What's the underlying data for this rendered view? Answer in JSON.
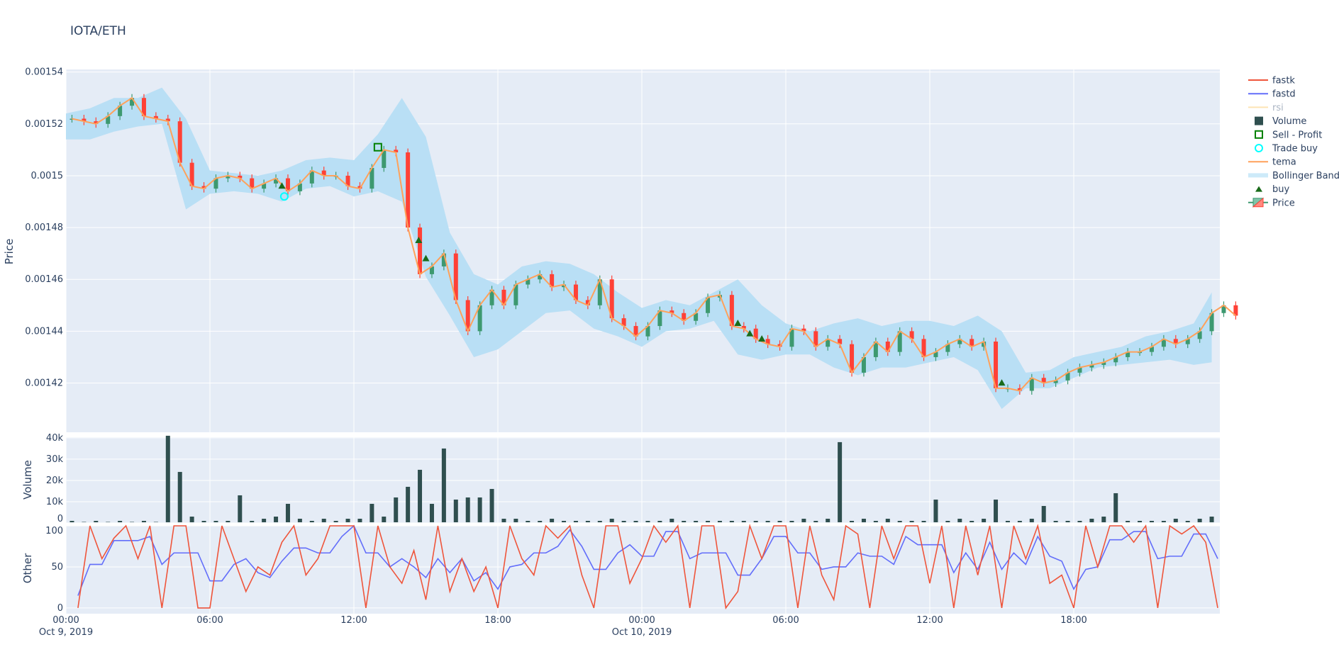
{
  "title": "IOTA/ETH",
  "chart_data": [
    {
      "type": "candlestick",
      "panel": "price",
      "ylabel": "Price",
      "ylim": [
        0.001401,
        0.001541
      ],
      "yticks": [
        "0.00154",
        "0.00152",
        "0.0015",
        "0.00148",
        "0.00146",
        "0.00144",
        "0.00142"
      ],
      "ytick_values": [
        0.00154,
        0.00152,
        0.0015,
        0.00148,
        0.00146,
        0.00144,
        0.00142
      ],
      "grid": true,
      "x_step_hours": 0.5,
      "x_start": "2019-10-09 00:00",
      "close": [
        0.001522,
        0.001521,
        0.00152,
        0.001523,
        0.001527,
        0.00153,
        0.001523,
        0.001522,
        0.001521,
        0.001505,
        0.001496,
        0.001495,
        0.001499,
        0.0015,
        0.001499,
        0.001495,
        0.001497,
        0.001499,
        0.001494,
        0.001497,
        0.001502,
        0.0015,
        0.0015,
        0.001496,
        0.001495,
        0.001503,
        0.00151,
        0.001509,
        0.00148,
        0.001462,
        0.001465,
        0.00147,
        0.001452,
        0.00144,
        0.00145,
        0.001456,
        0.00145,
        0.001458,
        0.00146,
        0.001462,
        0.001457,
        0.001458,
        0.001452,
        0.00145,
        0.00146,
        0.001445,
        0.001442,
        0.001438,
        0.001442,
        0.001448,
        0.001447,
        0.001444,
        0.001447,
        0.001453,
        0.001454,
        0.001442,
        0.001441,
        0.001437,
        0.001435,
        0.001434,
        0.001441,
        0.00144,
        0.001434,
        0.001437,
        0.001435,
        0.001424,
        0.00143,
        0.001436,
        0.001432,
        0.00144,
        0.001437,
        0.00143,
        0.001432,
        0.001435,
        0.001437,
        0.001434,
        0.001436,
        0.001418,
        0.001418,
        0.001417,
        0.001422,
        0.00142,
        0.001421,
        0.001424,
        0.001426,
        0.001427,
        0.001428,
        0.00143,
        0.001432,
        0.001432,
        0.001434,
        0.001437,
        0.001435,
        0.001437,
        0.00144,
        0.001447,
        0.00145,
        0.001446
      ],
      "bollinger_step_hours": 1,
      "bollinger_upper": [
        0.001524,
        0.001526,
        0.00153,
        0.00153,
        0.001534,
        0.001522,
        0.001502,
        0.001501,
        0.0015,
        0.001502,
        0.001506,
        0.001507,
        0.001506,
        0.001516,
        0.00153,
        0.001515,
        0.001478,
        0.001462,
        0.001458,
        0.001465,
        0.001467,
        0.001466,
        0.001462,
        0.001455,
        0.001449,
        0.001452,
        0.00145,
        0.001455,
        0.00146,
        0.00145,
        0.001443,
        0.00144,
        0.001443,
        0.001445,
        0.001442,
        0.001444,
        0.001444,
        0.001442,
        0.001446,
        0.00144,
        0.001424,
        0.001425,
        0.00143,
        0.001432,
        0.001434,
        0.001438,
        0.00144,
        0.001443,
        0.001455
      ],
      "bollinger_lower": [
        0.001514,
        0.001514,
        0.001517,
        0.001519,
        0.00152,
        0.001487,
        0.001493,
        0.001494,
        0.001493,
        0.00149,
        0.001495,
        0.001496,
        0.001492,
        0.001494,
        0.00149,
        0.001461,
        0.001446,
        0.00143,
        0.001433,
        0.00144,
        0.001447,
        0.001448,
        0.001441,
        0.001438,
        0.001434,
        0.00144,
        0.001441,
        0.001444,
        0.001431,
        0.001429,
        0.001431,
        0.001431,
        0.001426,
        0.001423,
        0.001426,
        0.001426,
        0.001428,
        0.00143,
        0.001425,
        0.00141,
        0.001418,
        0.001418,
        0.001422,
        0.001426,
        0.001427,
        0.001428,
        0.001429,
        0.001427,
        0.001428
      ],
      "buy": [
        [
          9.0,
          0.001495
        ],
        [
          14.7,
          0.001474
        ],
        [
          15.0,
          0.001467
        ],
        [
          28.0,
          0.001442
        ],
        [
          28.5,
          0.001438
        ],
        [
          29.0,
          0.001436
        ],
        [
          39.0,
          0.001419
        ]
      ],
      "trade_buy": [
        [
          9.1,
          0.001492
        ]
      ],
      "sell_profit": [
        [
          13.0,
          0.001511
        ]
      ]
    },
    {
      "type": "bar",
      "panel": "volume",
      "ylabel": "Volume",
      "ylim": [
        0,
        40300
      ],
      "yticks": [
        "40k",
        "30k",
        "20k",
        "10k",
        "0"
      ],
      "ytick_values": [
        40000,
        30000,
        20000,
        10000,
        0
      ],
      "x_step_hours": 0.5,
      "values": [
        1000,
        500,
        1000,
        500,
        1000,
        500,
        1000,
        500,
        41000,
        24000,
        3000,
        1000,
        1000,
        1000,
        13000,
        1000,
        2000,
        3000,
        9000,
        2000,
        1000,
        2000,
        1000,
        2000,
        2000,
        9000,
        3000,
        12000,
        17000,
        25000,
        9000,
        35000,
        11000,
        12000,
        12000,
        16000,
        2000,
        2000,
        1000,
        1000,
        2000,
        1000,
        1000,
        1000,
        1000,
        2000,
        1000,
        1000,
        1000,
        1000,
        2000,
        1000,
        1000,
        1000,
        1000,
        1000,
        1000,
        1000,
        1000,
        1000,
        1000,
        2000,
        1000,
        2000,
        38000,
        1000,
        2000,
        1000,
        2000,
        1000,
        1000,
        1000,
        11000,
        1000,
        2000,
        1000,
        2000,
        11000,
        1000,
        1000,
        2000,
        8000,
        1000,
        1000,
        1000,
        2000,
        3000,
        14000,
        1000,
        1000,
        1000,
        1000,
        2000,
        1000,
        2000,
        3000
      ]
    },
    {
      "type": "line",
      "panel": "other",
      "ylabel": "Other",
      "ylim": [
        -7,
        100
      ],
      "yticks": [
        "100",
        "50",
        "0"
      ],
      "ytick_values": [
        100,
        50,
        0
      ],
      "x_step_hours": 0.5,
      "series": [
        {
          "name": "fastk",
          "color": "#ef553b",
          "values": [
            0,
            100,
            60,
            85,
            100,
            60,
            100,
            0,
            100,
            100,
            0,
            0,
            100,
            60,
            20,
            50,
            40,
            80,
            100,
            40,
            60,
            100,
            100,
            100,
            0,
            100,
            50,
            30,
            70,
            10,
            100,
            20,
            60,
            20,
            50,
            0,
            100,
            60,
            40,
            100,
            85,
            100,
            40,
            0,
            100,
            100,
            30,
            60,
            100,
            80,
            100,
            0,
            100,
            100,
            0,
            20,
            100,
            60,
            100,
            100,
            0,
            100,
            40,
            10,
            100,
            90,
            0,
            100,
            60,
            100,
            100,
            30,
            100,
            0,
            100,
            40,
            100,
            0,
            100,
            60,
            100,
            30,
            40,
            0,
            100,
            50,
            100,
            100,
            80,
            100,
            0,
            100,
            90,
            100,
            80,
            0
          ]
        },
        {
          "name": "fastd",
          "color": "#636efa",
          "values": [
            15,
            53,
            53,
            82,
            82,
            82,
            87,
            53,
            67,
            67,
            67,
            33,
            33,
            53,
            60,
            43,
            37,
            57,
            73,
            73,
            67,
            67,
            87,
            100,
            67,
            67,
            50,
            60,
            50,
            37,
            60,
            43,
            60,
            33,
            43,
            23,
            50,
            53,
            67,
            67,
            75,
            95,
            75,
            47,
            47,
            67,
            77,
            63,
            63,
            93,
            93,
            60,
            67,
            67,
            67,
            40,
            40,
            60,
            87,
            87,
            67,
            67,
            47,
            50,
            50,
            67,
            63,
            63,
            53,
            87,
            77,
            77,
            77,
            43,
            67,
            47,
            80,
            47,
            67,
            53,
            87,
            63,
            57,
            23,
            47,
            50,
            83,
            83,
            93,
            93,
            60,
            63,
            63,
            90,
            90,
            60
          ]
        }
      ]
    }
  ],
  "x_axis": {
    "ticks": [
      {
        "hour": 0,
        "label": "00:00",
        "sub": "Oct 9, 2019"
      },
      {
        "hour": 6,
        "label": "06:00",
        "sub": ""
      },
      {
        "hour": 12,
        "label": "12:00",
        "sub": ""
      },
      {
        "hour": 18,
        "label": "18:00",
        "sub": ""
      },
      {
        "hour": 24,
        "label": "00:00",
        "sub": "Oct 10, 2019"
      },
      {
        "hour": 30,
        "label": "06:00",
        "sub": ""
      },
      {
        "hour": 36,
        "label": "12:00",
        "sub": ""
      },
      {
        "hour": 42,
        "label": "18:00",
        "sub": ""
      }
    ]
  },
  "legend": {
    "placement": "right",
    "items": [
      "fastk",
      "fastd",
      "rsi",
      "Volume",
      "Sell - Profit",
      "Trade buy",
      "tema",
      "Bollinger Band",
      "buy",
      "Price"
    ]
  },
  "colors": {
    "increasing": "#3d9970",
    "decreasing": "#ff4136",
    "tema": "#ffa15a",
    "bollinger": "#b9dff5",
    "volume": "#2f4f4f",
    "buy": "#1a6b1a",
    "trade_buy": "#00ffff",
    "sell_profit": "#008000",
    "rsi": "#fde4b4",
    "plot_bg": "#e5ecf6"
  }
}
